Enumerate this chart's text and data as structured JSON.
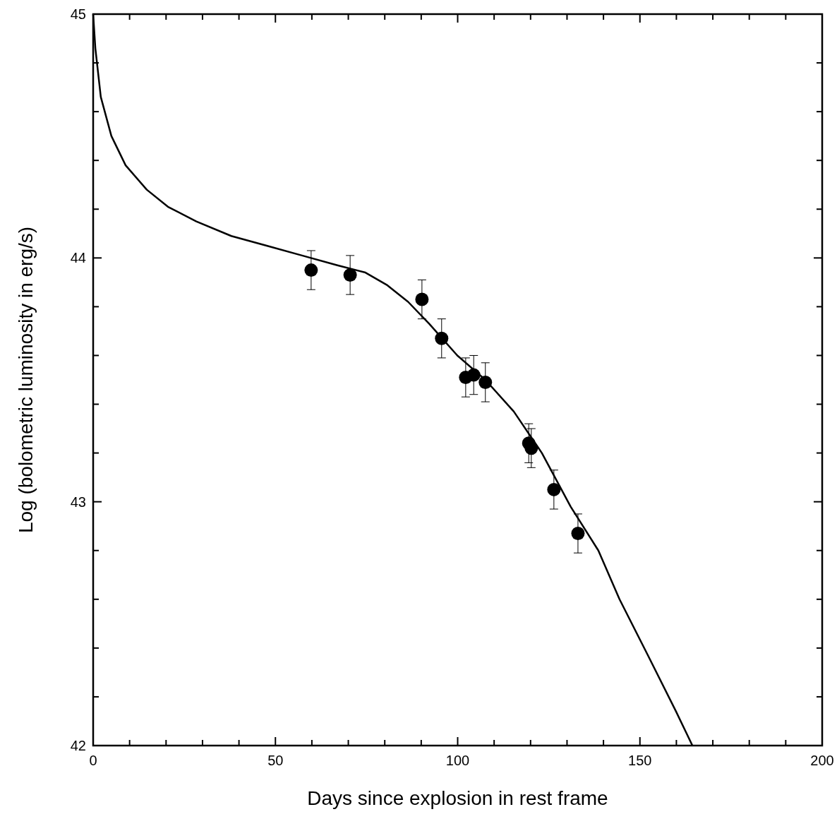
{
  "chart_data": {
    "type": "scatter",
    "xlabel": "Days since explosion in rest frame",
    "ylabel": "Log (bolometric luminosity in erg/s)",
    "xlim": [
      0,
      200
    ],
    "ylim": [
      42,
      45
    ],
    "xticks": [
      0,
      {
        "value": 10,
        "label": null
      },
      {
        "value": 20,
        "label": null
      },
      {
        "value": 30,
        "label": null
      },
      {
        "value": 40,
        "label": null
      },
      50,
      {
        "value": 60,
        "label": null
      },
      {
        "value": 70,
        "label": null
      },
      {
        "value": 80,
        "label": null
      },
      {
        "value": 90,
        "label": null
      },
      100,
      {
        "value": 110,
        "label": null
      },
      {
        "value": 120,
        "label": null
      },
      {
        "value": 130,
        "label": null
      },
      {
        "value": 140,
        "label": null
      },
      150,
      {
        "value": 160,
        "label": null
      },
      {
        "value": 170,
        "label": null
      },
      {
        "value": 180,
        "label": null
      },
      {
        "value": 190,
        "label": null
      },
      200
    ],
    "yticks": [
      42,
      {
        "value": 42.2,
        "label": null
      },
      {
        "value": 42.4,
        "label": null
      },
      {
        "value": 42.6,
        "label": null
      },
      {
        "value": 42.8,
        "label": null
      },
      43,
      {
        "value": 43.2,
        "label": null
      },
      {
        "value": 43.4,
        "label": null
      },
      {
        "value": 43.6,
        "label": null
      },
      {
        "value": 43.8,
        "label": null
      },
      44,
      {
        "value": 44.2,
        "label": null
      },
      {
        "value": 44.4,
        "label": null
      },
      {
        "value": 44.6,
        "label": null
      },
      {
        "value": 44.8,
        "label": null
      },
      45
    ],
    "grid": false,
    "series": [
      {
        "type": "line",
        "color": "#000000",
        "line_style": "solid",
        "marker": "none",
        "x": [
          0,
          0.6,
          2.1,
          5,
          8.9,
          14.7,
          20.5,
          28.3,
          37.9,
          47.6,
          57.3,
          67,
          74.7,
          80.5,
          86.4,
          92.2,
          99.9,
          107.6,
          115.4,
          123.1,
          131,
          138.6,
          144.4,
          152.2,
          159.9,
          164.4
        ],
        "values": [
          45,
          44.86,
          44.66,
          44.5,
          44.38,
          44.28,
          44.21,
          44.15,
          44.09,
          44.05,
          44.01,
          43.97,
          43.94,
          43.89,
          43.82,
          43.73,
          43.6,
          43.5,
          43.37,
          43.2,
          42.98,
          42.8,
          42.6,
          42.37,
          42.14,
          42
        ]
      },
      {
        "color": "#000000",
        "marker": "circle",
        "x": [
          59.8,
          70.5,
          90.2,
          95.6,
          102.2,
          104.4,
          107.6,
          119.5,
          120.2,
          126.4,
          133
        ],
        "values": [
          43.95,
          43.93,
          43.83,
          43.67,
          43.51,
          43.52,
          43.49,
          43.24,
          43.22,
          43.05,
          42.87
        ],
        "errors": [
          0.08,
          0.08,
          0.08,
          0.08,
          0.08,
          0.08,
          0.08,
          0.08,
          0.08,
          0.08,
          0.08
        ]
      }
    ]
  }
}
